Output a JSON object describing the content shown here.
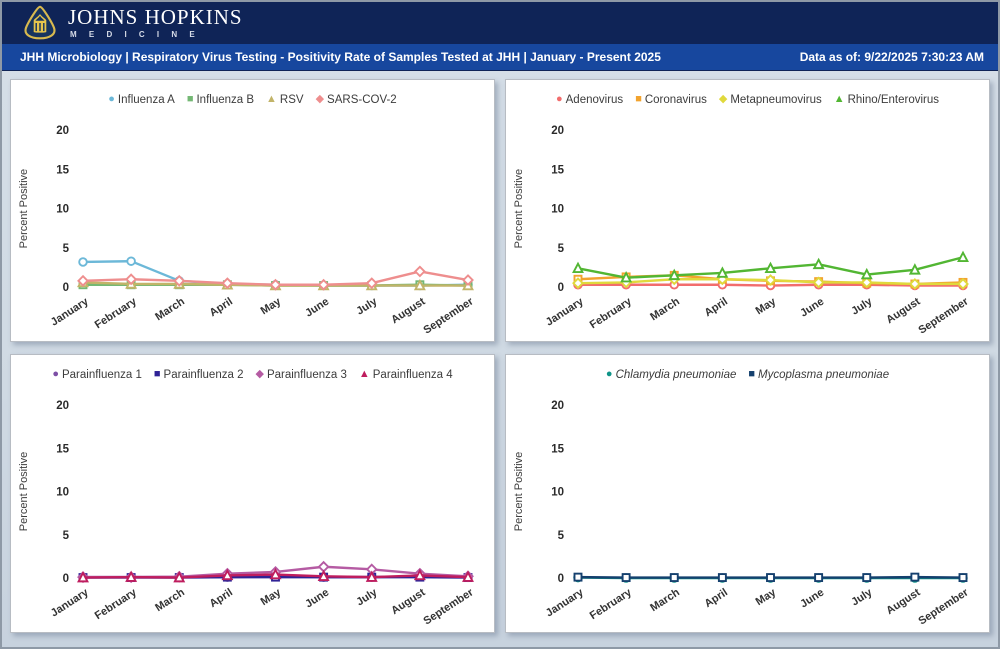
{
  "header": {
    "brand_line1": "JOHNS HOPKINS",
    "brand_line2": "M E D I C I N E"
  },
  "title_bar": {
    "title": "JHH Microbiology | Respiratory Virus Testing - Positivity Rate of Samples Tested at JHH | January - Present 2025",
    "data_as_of": "Data as of: 9/22/2025 7:30:23 AM"
  },
  "colors": {
    "header_navy": "#0f2457",
    "title_blue": "#17479e",
    "page_background": "#cfd9e3"
  },
  "axis": {
    "ylabel": "Percent Positive",
    "yticks": [
      0,
      5,
      10,
      15,
      20
    ],
    "ylim": [
      0,
      20
    ]
  },
  "months": [
    "January",
    "February",
    "March",
    "April",
    "May",
    "June",
    "July",
    "August",
    "September"
  ],
  "chart_data": [
    {
      "type": "line",
      "title": "",
      "xlabel": "",
      "ylabel": "Percent Positive",
      "ylim": [
        0,
        20
      ],
      "yticks": [
        0,
        5,
        10,
        15,
        20
      ],
      "grid": false,
      "legend_position": "top",
      "italic_legend": false,
      "categories": [
        "January",
        "February",
        "March",
        "April",
        "May",
        "June",
        "July",
        "August",
        "September"
      ],
      "series": [
        {
          "name": "Influenza A",
          "color": "#6cb8d8",
          "marker": "circle",
          "values": [
            3.2,
            3.3,
            0.8,
            0.4,
            0.3,
            0.2,
            0.2,
            0.2,
            0.3
          ]
        },
        {
          "name": "Influenza B",
          "color": "#74b874",
          "marker": "square",
          "values": [
            0.3,
            0.3,
            0.3,
            0.3,
            0.2,
            0.2,
            0.2,
            0.3,
            0.2
          ]
        },
        {
          "name": "RSV",
          "color": "#c2b469",
          "marker": "triangle",
          "values": [
            0.6,
            0.4,
            0.4,
            0.3,
            0.2,
            0.2,
            0.2,
            0.2,
            0.2
          ]
        },
        {
          "name": "SARS-COV-2",
          "color": "#ee8e8e",
          "marker": "diamond",
          "values": [
            0.8,
            1.0,
            0.8,
            0.5,
            0.3,
            0.3,
            0.5,
            2.0,
            0.9
          ]
        }
      ]
    },
    {
      "type": "line",
      "title": "",
      "xlabel": "",
      "ylabel": "Percent Positive",
      "ylim": [
        0,
        20
      ],
      "yticks": [
        0,
        5,
        10,
        15,
        20
      ],
      "grid": false,
      "legend_position": "top",
      "italic_legend": false,
      "categories": [
        "January",
        "February",
        "March",
        "April",
        "May",
        "June",
        "July",
        "August",
        "September"
      ],
      "series": [
        {
          "name": "Adenovirus",
          "color": "#f26d6d",
          "marker": "circle",
          "values": [
            0.3,
            0.3,
            0.3,
            0.3,
            0.2,
            0.3,
            0.3,
            0.2,
            0.2
          ]
        },
        {
          "name": "Coronavirus",
          "color": "#f2a32e",
          "marker": "square",
          "values": [
            1.0,
            1.3,
            1.5,
            1.0,
            0.8,
            0.7,
            0.5,
            0.4,
            0.6
          ]
        },
        {
          "name": "Metapneumovirus",
          "color": "#e0d93c",
          "marker": "diamond",
          "values": [
            0.5,
            0.6,
            1.0,
            1.0,
            0.9,
            0.6,
            0.6,
            0.4,
            0.4
          ]
        },
        {
          "name": "Rhino/Enterovirus",
          "color": "#52b633",
          "marker": "triangle",
          "values": [
            2.4,
            1.2,
            1.5,
            1.8,
            2.4,
            2.9,
            1.6,
            2.2,
            3.8
          ]
        }
      ]
    },
    {
      "type": "line",
      "title": "",
      "xlabel": "",
      "ylabel": "Percent Positive",
      "ylim": [
        0,
        20
      ],
      "yticks": [
        0,
        5,
        10,
        15,
        20
      ],
      "grid": false,
      "legend_position": "top",
      "italic_legend": false,
      "categories": [
        "January",
        "February",
        "March",
        "April",
        "May",
        "June",
        "July",
        "August",
        "September"
      ],
      "series": [
        {
          "name": "Parainfluenza 1",
          "color": "#7d4fa5",
          "marker": "circle",
          "values": [
            0.1,
            0.1,
            0.1,
            0.1,
            0.2,
            0.1,
            0.1,
            0.2,
            0.1
          ]
        },
        {
          "name": "Parainfluenza 2",
          "color": "#2f2396",
          "marker": "square",
          "values": [
            0.05,
            0.05,
            0.05,
            0.1,
            0.1,
            0.1,
            0.1,
            0.1,
            0.05
          ]
        },
        {
          "name": "Parainfluenza 3",
          "color": "#b55ba3",
          "marker": "diamond",
          "values": [
            0.1,
            0.1,
            0.15,
            0.5,
            0.7,
            1.3,
            1.0,
            0.5,
            0.2
          ]
        },
        {
          "name": "Parainfluenza 4",
          "color": "#bf1d5e",
          "marker": "triangle",
          "values": [
            0.05,
            0.1,
            0.05,
            0.3,
            0.4,
            0.2,
            0.1,
            0.3,
            0.1
          ]
        }
      ]
    },
    {
      "type": "line",
      "title": "",
      "xlabel": "",
      "ylabel": "Percent Positive",
      "ylim": [
        0,
        20
      ],
      "yticks": [
        0,
        5,
        10,
        15,
        20
      ],
      "grid": false,
      "legend_position": "top",
      "italic_legend": true,
      "categories": [
        "January",
        "February",
        "March",
        "April",
        "May",
        "June",
        "July",
        "August",
        "September"
      ],
      "series": [
        {
          "name": "Chlamydia pneumoniae",
          "color": "#0f9488",
          "marker": "circle",
          "values": [
            0.05,
            0,
            0,
            0,
            0,
            0,
            0,
            0,
            0
          ]
        },
        {
          "name": "Mycoplasma pneumoniae",
          "color": "#15406e",
          "marker": "square",
          "values": [
            0.1,
            0.05,
            0.05,
            0.05,
            0.05,
            0.05,
            0.05,
            0.1,
            0.05
          ]
        }
      ]
    }
  ]
}
